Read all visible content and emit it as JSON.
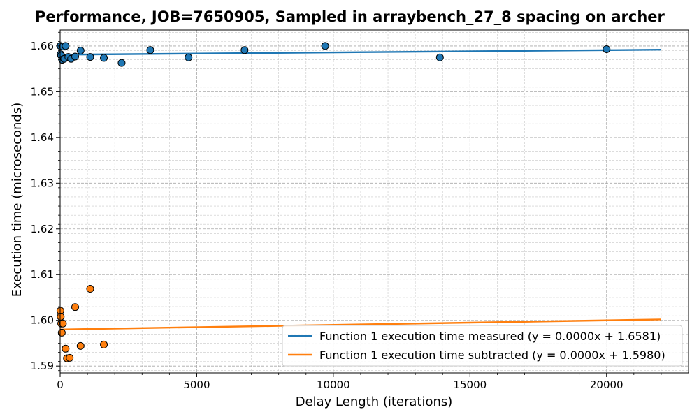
{
  "chart_data": {
    "type": "scatter",
    "title": "Performance, JOB=7650905, Sampled in arraybench_27_8 spacing on archer",
    "xlabel": "Delay Length (iterations)",
    "ylabel": "Execution time (microseconds)",
    "xlim": [
      0,
      23000
    ],
    "ylim": [
      1.5885,
      1.6635
    ],
    "x_ticks": [
      0,
      5000,
      10000,
      15000,
      20000
    ],
    "y_ticks": [
      1.59,
      1.6,
      1.61,
      1.62,
      1.63,
      1.64,
      1.65,
      1.66
    ],
    "grid": true,
    "legend_position": "bottom-right",
    "series": [
      {
        "name": "Function 1 execution time measured (y = 0.0000x + 1.6581)",
        "color": "#1f77b4",
        "points": [
          [
            10,
            1.66
          ],
          [
            20,
            1.6582
          ],
          [
            40,
            1.6579
          ],
          [
            75,
            1.657
          ],
          [
            100,
            1.6599
          ],
          [
            150,
            1.6572
          ],
          [
            200,
            1.66
          ],
          [
            300,
            1.6576
          ],
          [
            400,
            1.6572
          ],
          [
            550,
            1.6577
          ],
          [
            750,
            1.659
          ],
          [
            1100,
            1.6576
          ],
          [
            1600,
            1.6574
          ],
          [
            2250,
            1.6563
          ],
          [
            3300,
            1.6591
          ],
          [
            4700,
            1.6575
          ],
          [
            6750,
            1.6591
          ],
          [
            9700,
            1.66
          ],
          [
            13900,
            1.6575
          ],
          [
            20000,
            1.6593
          ]
        ],
        "fit": {
          "slope": 4.98e-08,
          "intercept": 1.6581,
          "x_range": [
            0,
            22000
          ]
        }
      },
      {
        "name": "Function 1 execution time subtracted (y = 0.0000x + 1.5980)",
        "color": "#ff7f0e",
        "points": [
          [
            10,
            1.6021
          ],
          [
            20,
            1.6008
          ],
          [
            40,
            1.5993
          ],
          [
            60,
            1.5973
          ],
          [
            100,
            1.5993
          ],
          [
            200,
            1.5938
          ],
          [
            250,
            1.5917
          ],
          [
            350,
            1.5918
          ],
          [
            550,
            1.6029
          ],
          [
            750,
            1.5944
          ],
          [
            1100,
            1.6069
          ],
          [
            1600,
            1.5947
          ]
        ],
        "fit": {
          "slope": 9.98e-08,
          "intercept": 1.598,
          "x_range": [
            0,
            22000
          ]
        }
      }
    ]
  }
}
